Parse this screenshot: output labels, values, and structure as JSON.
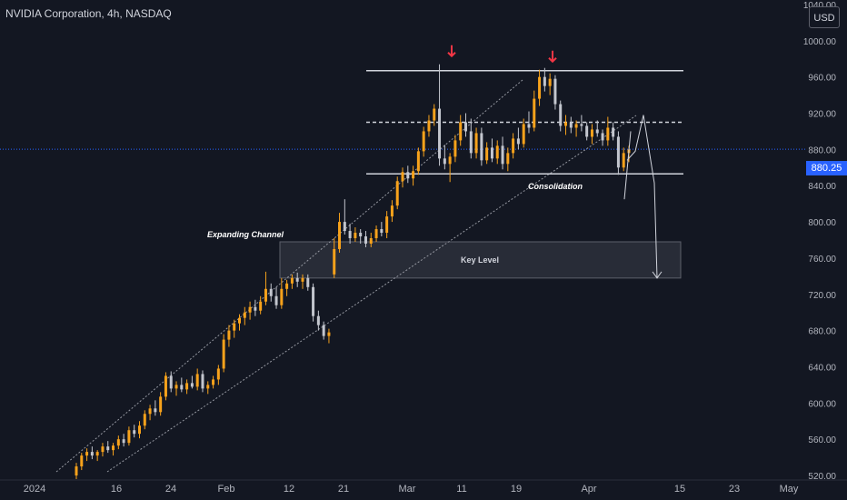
{
  "header": {
    "title": "NVIDIA Corporation, 4h, NASDAQ",
    "currency_button": "USD"
  },
  "colors": {
    "background": "#131722",
    "up_candle": "#f7a21b",
    "down_candle": "#c3c6ce",
    "arrow": "#f23645",
    "price_line": "#2962ff",
    "axis_text": "#b2b5be"
  },
  "current_price": {
    "label": "880.25",
    "value": 880.25
  },
  "annotations": {
    "consolidation": "Consolidation",
    "key_level": "Key Level",
    "expanding_channel": "Expanding Channel"
  },
  "chart_data": {
    "type": "candlestick",
    "x_tick_labels": [
      "2024",
      "16",
      "24",
      "Feb",
      "12",
      "21",
      "Mar",
      "11",
      "19",
      "Apr",
      "15",
      "23",
      "May"
    ],
    "y_tick_labels": [
      "1040.00",
      "1000.00",
      "960.00",
      "920.00",
      "880.00",
      "840.00",
      "800.00",
      "760.00",
      "720.00",
      "680.00",
      "640.00",
      "600.00",
      "560.00",
      "520.00"
    ],
    "y_range": [
      515,
      1045
    ],
    "bars": [
      {
        "o": 520,
        "h": 534,
        "l": 516,
        "c": 530
      },
      {
        "o": 530,
        "h": 545,
        "l": 526,
        "c": 542
      },
      {
        "o": 542,
        "h": 550,
        "l": 536,
        "c": 546
      },
      {
        "o": 546,
        "h": 552,
        "l": 538,
        "c": 542
      },
      {
        "o": 542,
        "h": 548,
        "l": 536,
        "c": 546
      },
      {
        "o": 546,
        "h": 556,
        "l": 541,
        "c": 552
      },
      {
        "o": 552,
        "h": 558,
        "l": 545,
        "c": 548
      },
      {
        "o": 548,
        "h": 556,
        "l": 542,
        "c": 553
      },
      {
        "o": 553,
        "h": 564,
        "l": 549,
        "c": 560
      },
      {
        "o": 560,
        "h": 566,
        "l": 552,
        "c": 556
      },
      {
        "o": 556,
        "h": 574,
        "l": 553,
        "c": 570
      },
      {
        "o": 570,
        "h": 576,
        "l": 562,
        "c": 566
      },
      {
        "o": 566,
        "h": 580,
        "l": 561,
        "c": 575
      },
      {
        "o": 575,
        "h": 592,
        "l": 571,
        "c": 588
      },
      {
        "o": 588,
        "h": 598,
        "l": 581,
        "c": 594
      },
      {
        "o": 594,
        "h": 603,
        "l": 586,
        "c": 590
      },
      {
        "o": 590,
        "h": 612,
        "l": 586,
        "c": 607
      },
      {
        "o": 607,
        "h": 634,
        "l": 603,
        "c": 630
      },
      {
        "o": 630,
        "h": 635,
        "l": 612,
        "c": 616
      },
      {
        "o": 616,
        "h": 624,
        "l": 608,
        "c": 620
      },
      {
        "o": 620,
        "h": 628,
        "l": 612,
        "c": 615
      },
      {
        "o": 615,
        "h": 626,
        "l": 610,
        "c": 622
      },
      {
        "o": 622,
        "h": 630,
        "l": 616,
        "c": 618
      },
      {
        "o": 618,
        "h": 638,
        "l": 614,
        "c": 632
      },
      {
        "o": 632,
        "h": 636,
        "l": 612,
        "c": 616
      },
      {
        "o": 616,
        "h": 624,
        "l": 610,
        "c": 620
      },
      {
        "o": 620,
        "h": 630,
        "l": 616,
        "c": 626
      },
      {
        "o": 626,
        "h": 642,
        "l": 620,
        "c": 638
      },
      {
        "o": 638,
        "h": 676,
        "l": 634,
        "c": 670
      },
      {
        "o": 670,
        "h": 686,
        "l": 662,
        "c": 680
      },
      {
        "o": 680,
        "h": 692,
        "l": 672,
        "c": 688
      },
      {
        "o": 688,
        "h": 698,
        "l": 680,
        "c": 694
      },
      {
        "o": 694,
        "h": 706,
        "l": 686,
        "c": 700
      },
      {
        "o": 700,
        "h": 712,
        "l": 692,
        "c": 706
      },
      {
        "o": 706,
        "h": 714,
        "l": 696,
        "c": 702
      },
      {
        "o": 702,
        "h": 718,
        "l": 698,
        "c": 712
      },
      {
        "o": 712,
        "h": 745,
        "l": 708,
        "c": 726
      },
      {
        "o": 726,
        "h": 732,
        "l": 712,
        "c": 718
      },
      {
        "o": 718,
        "h": 728,
        "l": 704,
        "c": 708
      },
      {
        "o": 708,
        "h": 738,
        "l": 704,
        "c": 726
      },
      {
        "o": 726,
        "h": 736,
        "l": 718,
        "c": 732
      },
      {
        "o": 732,
        "h": 742,
        "l": 726,
        "c": 738
      },
      {
        "o": 738,
        "h": 744,
        "l": 728,
        "c": 734
      },
      {
        "o": 734,
        "h": 742,
        "l": 726,
        "c": 738
      },
      {
        "o": 738,
        "h": 742,
        "l": 724,
        "c": 728
      },
      {
        "o": 728,
        "h": 732,
        "l": 690,
        "c": 696
      },
      {
        "o": 696,
        "h": 702,
        "l": 680,
        "c": 686
      },
      {
        "o": 686,
        "h": 690,
        "l": 670,
        "c": 674
      },
      {
        "o": 674,
        "h": 682,
        "l": 666,
        "c": 678
      },
      {
        "o": 742,
        "h": 782,
        "l": 738,
        "c": 770
      },
      {
        "o": 770,
        "h": 810,
        "l": 766,
        "c": 800
      },
      {
        "o": 800,
        "h": 825,
        "l": 786,
        "c": 790
      },
      {
        "o": 790,
        "h": 798,
        "l": 776,
        "c": 782
      },
      {
        "o": 782,
        "h": 794,
        "l": 778,
        "c": 788
      },
      {
        "o": 788,
        "h": 792,
        "l": 776,
        "c": 784
      },
      {
        "o": 784,
        "h": 790,
        "l": 772,
        "c": 776
      },
      {
        "o": 776,
        "h": 788,
        "l": 772,
        "c": 782
      },
      {
        "o": 782,
        "h": 796,
        "l": 778,
        "c": 792
      },
      {
        "o": 792,
        "h": 800,
        "l": 784,
        "c": 788
      },
      {
        "o": 788,
        "h": 812,
        "l": 782,
        "c": 806
      },
      {
        "o": 806,
        "h": 824,
        "l": 800,
        "c": 818
      },
      {
        "o": 818,
        "h": 850,
        "l": 814,
        "c": 845
      },
      {
        "o": 845,
        "h": 860,
        "l": 838,
        "c": 855
      },
      {
        "o": 855,
        "h": 862,
        "l": 843,
        "c": 848
      },
      {
        "o": 848,
        "h": 862,
        "l": 840,
        "c": 856
      },
      {
        "o": 856,
        "h": 882,
        "l": 852,
        "c": 878
      },
      {
        "o": 878,
        "h": 905,
        "l": 872,
        "c": 900
      },
      {
        "o": 900,
        "h": 918,
        "l": 894,
        "c": 912
      },
      {
        "o": 912,
        "h": 930,
        "l": 906,
        "c": 925
      },
      {
        "o": 925,
        "h": 974,
        "l": 862,
        "c": 870
      },
      {
        "o": 870,
        "h": 885,
        "l": 858,
        "c": 864
      },
      {
        "o": 864,
        "h": 876,
        "l": 844,
        "c": 872
      },
      {
        "o": 872,
        "h": 896,
        "l": 866,
        "c": 890
      },
      {
        "o": 890,
        "h": 918,
        "l": 884,
        "c": 910
      },
      {
        "o": 910,
        "h": 920,
        "l": 894,
        "c": 900
      },
      {
        "o": 900,
        "h": 914,
        "l": 870,
        "c": 876
      },
      {
        "o": 876,
        "h": 904,
        "l": 870,
        "c": 898
      },
      {
        "o": 898,
        "h": 904,
        "l": 862,
        "c": 868
      },
      {
        "o": 868,
        "h": 888,
        "l": 864,
        "c": 882
      },
      {
        "o": 882,
        "h": 892,
        "l": 866,
        "c": 870
      },
      {
        "o": 870,
        "h": 890,
        "l": 864,
        "c": 884
      },
      {
        "o": 884,
        "h": 894,
        "l": 858,
        "c": 864
      },
      {
        "o": 864,
        "h": 882,
        "l": 856,
        "c": 876
      },
      {
        "o": 876,
        "h": 898,
        "l": 870,
        "c": 892
      },
      {
        "o": 892,
        "h": 904,
        "l": 880,
        "c": 886
      },
      {
        "o": 886,
        "h": 914,
        "l": 882,
        "c": 908
      },
      {
        "o": 908,
        "h": 922,
        "l": 898,
        "c": 904
      },
      {
        "o": 904,
        "h": 945,
        "l": 900,
        "c": 936
      },
      {
        "o": 936,
        "h": 968,
        "l": 928,
        "c": 960
      },
      {
        "o": 960,
        "h": 970,
        "l": 944,
        "c": 950
      },
      {
        "o": 950,
        "h": 964,
        "l": 940,
        "c": 958
      },
      {
        "o": 958,
        "h": 962,
        "l": 924,
        "c": 930
      },
      {
        "o": 930,
        "h": 934,
        "l": 900,
        "c": 906
      },
      {
        "o": 906,
        "h": 918,
        "l": 896,
        "c": 910
      },
      {
        "o": 910,
        "h": 916,
        "l": 898,
        "c": 904
      },
      {
        "o": 904,
        "h": 912,
        "l": 894,
        "c": 908
      },
      {
        "o": 908,
        "h": 918,
        "l": 900,
        "c": 906
      },
      {
        "o": 906,
        "h": 910,
        "l": 890,
        "c": 894
      },
      {
        "o": 894,
        "h": 908,
        "l": 886,
        "c": 902
      },
      {
        "o": 902,
        "h": 912,
        "l": 894,
        "c": 898
      },
      {
        "o": 898,
        "h": 902,
        "l": 884,
        "c": 890
      },
      {
        "o": 890,
        "h": 916,
        "l": 884,
        "c": 904
      },
      {
        "o": 904,
        "h": 910,
        "l": 890,
        "c": 894
      },
      {
        "o": 894,
        "h": 900,
        "l": 852,
        "c": 860
      },
      {
        "o": 860,
        "h": 882,
        "l": 856,
        "c": 876
      },
      {
        "o": 876,
        "h": 884,
        "l": 866,
        "c": 880
      }
    ]
  }
}
